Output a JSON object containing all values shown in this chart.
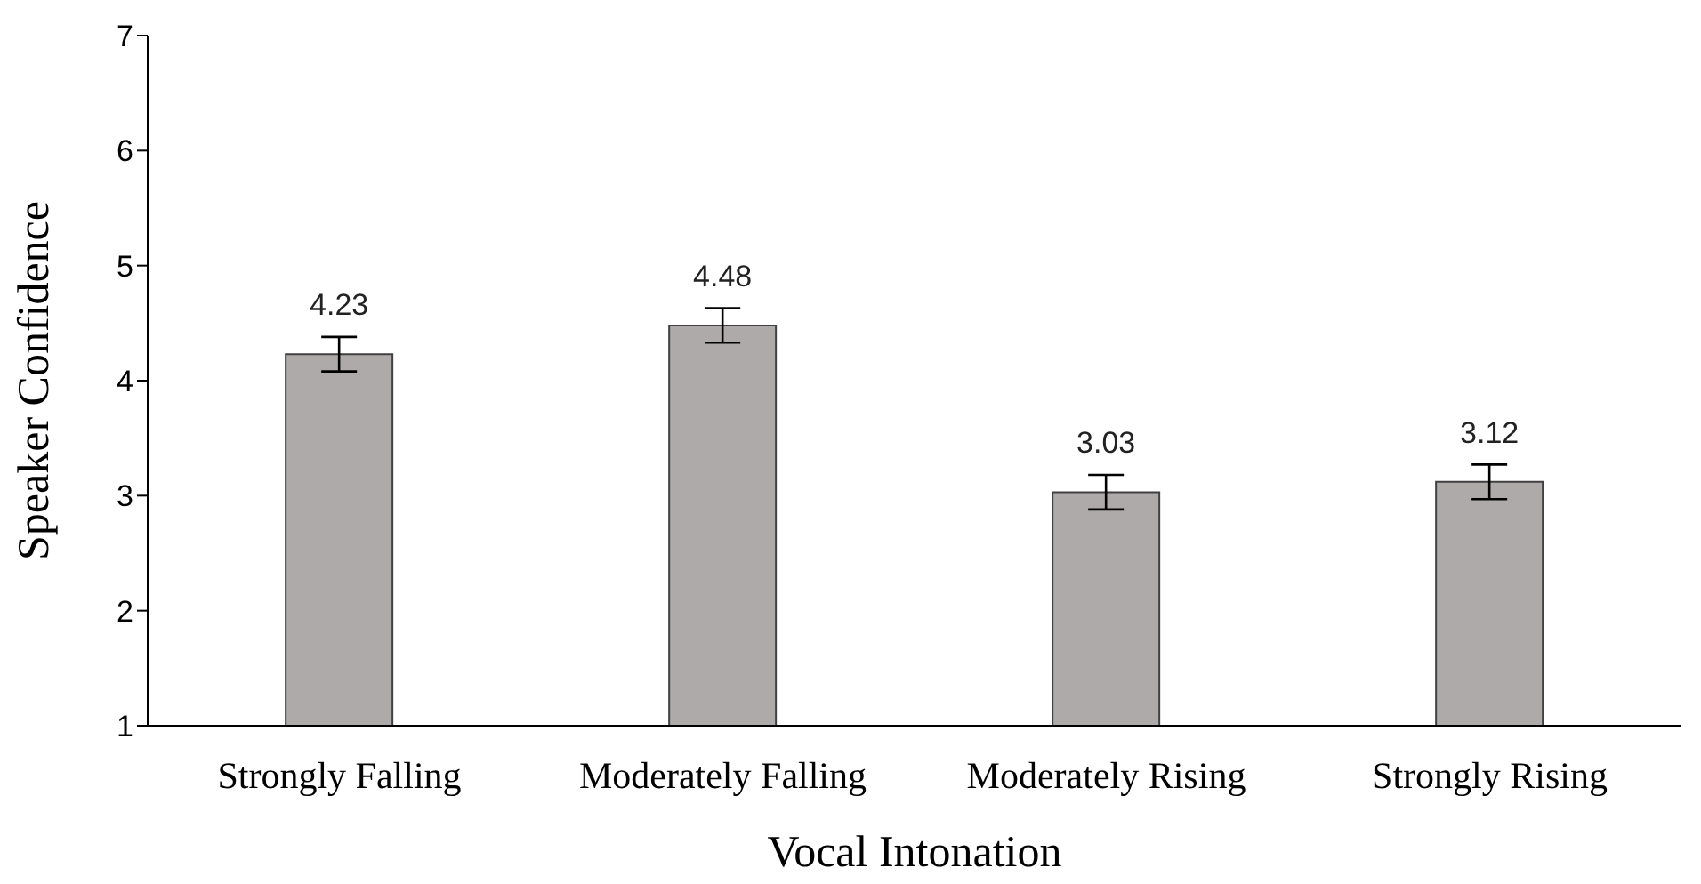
{
  "chart_data": {
    "type": "bar",
    "xlabel": "Vocal Intonation",
    "ylabel": "Speaker Confidence",
    "categories": [
      "Strongly Falling",
      "Moderately Falling",
      "Moderately Rising",
      "Strongly Rising"
    ],
    "values": [
      4.23,
      4.48,
      3.03,
      3.12
    ],
    "errors": [
      0.15,
      0.15,
      0.15,
      0.15
    ],
    "color": "#aeaaaa",
    "ylim": [
      1,
      7
    ],
    "yticks": [
      1,
      2,
      3,
      4,
      5,
      6,
      7
    ],
    "grid": false,
    "data_labels": true
  }
}
